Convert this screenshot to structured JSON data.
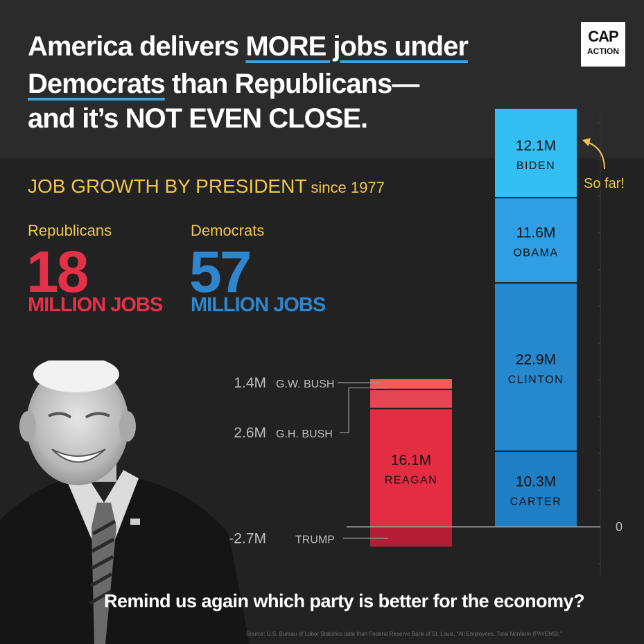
{
  "header": {
    "line1_a": "America delivers ",
    "line1_b": "MORE jobs under",
    "line2_a": "Democrats",
    "line2_b": " than Republicans—",
    "line3": "and it’s NOT EVEN CLOSE."
  },
  "logo": {
    "line1": "CAP",
    "line2": "ACTION"
  },
  "subtitle": {
    "main": "JOB GROWTH BY PRESIDENT",
    "since": "since 1977"
  },
  "republicans": {
    "label": "Republicans",
    "total": "18",
    "unit": "MILLION JOBS"
  },
  "democrats": {
    "label": "Democrats",
    "total": "57",
    "unit": "MILLION JOBS"
  },
  "annotation": "So far!",
  "question": "Remind us again which party is better for the economy?",
  "source": "Source: U.S. Bureau of Labor Statistics data from Federal Reserve Bank of St. Louis, “All Employees, Total Nonfarm (PAYEMS).”",
  "colors": {
    "red": "#e23148",
    "blue": "#2e86cf",
    "gold": "#f0c64a"
  },
  "chart_data": {
    "type": "bar",
    "zero_label": "0",
    "series": [
      {
        "name": "Republicans",
        "segments": [
          {
            "president": "REAGAN",
            "value": 16.1,
            "label": "16.1M",
            "color": "#e42d43"
          },
          {
            "president": "G.H. BUSH",
            "value": 2.6,
            "label": "2.6M",
            "color": "#e64553"
          },
          {
            "president": "G.W. BUSH",
            "value": 1.4,
            "label": "1.4M",
            "color": "#f15a55"
          },
          {
            "president": "TRUMP",
            "value": -2.7,
            "label": "-2.7M",
            "color": "#b51d36"
          }
        ]
      },
      {
        "name": "Democrats",
        "segments": [
          {
            "president": "CARTER",
            "value": 10.3,
            "label": "10.3M",
            "color": "#1f7fc4"
          },
          {
            "president": "CLINTON",
            "value": 22.9,
            "label": "22.9M",
            "color": "#2688cd"
          },
          {
            "president": "OBAMA",
            "value": 11.6,
            "label": "11.6M",
            "color": "#2f9ee3"
          },
          {
            "president": "BIDEN",
            "value": 12.1,
            "label": "12.1M",
            "color": "#33bef4"
          }
        ]
      }
    ]
  }
}
